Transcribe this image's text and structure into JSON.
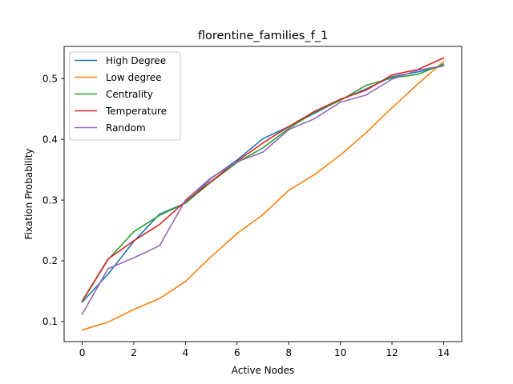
{
  "chart_data": {
    "type": "line",
    "title": "florentine_families_f_1",
    "xlabel": "Active Nodes",
    "ylabel": "Fixation Probability",
    "xlim": [
      -0.7,
      14.7
    ],
    "ylim": [
      0.067,
      0.553
    ],
    "x": [
      0,
      1,
      2,
      3,
      4,
      5,
      6,
      7,
      8,
      9,
      10,
      11,
      12,
      13,
      14
    ],
    "xticks": [
      0,
      2,
      4,
      6,
      8,
      10,
      12,
      14
    ],
    "yticks": [
      0.1,
      0.2,
      0.3,
      0.4,
      0.5
    ],
    "xtick_labels": [
      "0",
      "2",
      "4",
      "6",
      "8",
      "10",
      "12",
      "14"
    ],
    "ytick_labels": [
      "0.1",
      "0.2",
      "0.3",
      "0.4",
      "0.5"
    ],
    "grid": false,
    "legend_position": "top-left",
    "series": [
      {
        "name": "High Degree",
        "color": "#1f77b4",
        "values": [
          0.132,
          0.178,
          0.232,
          0.277,
          0.295,
          0.336,
          0.366,
          0.401,
          0.421,
          0.443,
          0.465,
          0.483,
          0.503,
          0.511,
          0.521
        ]
      },
      {
        "name": "Low degree",
        "color": "#ff7f0e",
        "values": [
          0.086,
          0.099,
          0.12,
          0.138,
          0.166,
          0.207,
          0.245,
          0.276,
          0.316,
          0.342,
          0.374,
          0.411,
          0.452,
          0.491,
          0.528
        ]
      },
      {
        "name": "Centrality",
        "color": "#2ca02c",
        "values": [
          0.133,
          0.202,
          0.248,
          0.275,
          0.295,
          0.33,
          0.362,
          0.386,
          0.418,
          0.445,
          0.464,
          0.489,
          0.501,
          0.507,
          0.524
        ]
      },
      {
        "name": "Temperature",
        "color": "#d62728",
        "values": [
          0.134,
          0.203,
          0.233,
          0.26,
          0.298,
          0.331,
          0.364,
          0.394,
          0.421,
          0.446,
          0.466,
          0.481,
          0.506,
          0.515,
          0.534
        ]
      },
      {
        "name": "Random",
        "color": "#9467bd",
        "values": [
          0.112,
          0.187,
          0.205,
          0.225,
          0.3,
          0.337,
          0.363,
          0.379,
          0.416,
          0.434,
          0.461,
          0.473,
          0.499,
          0.514,
          0.521
        ]
      }
    ]
  }
}
